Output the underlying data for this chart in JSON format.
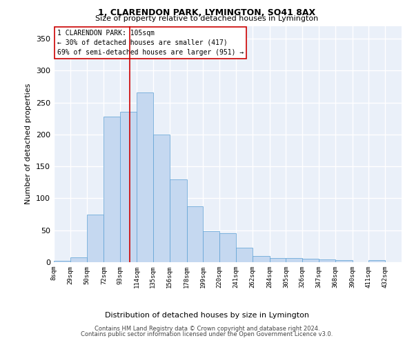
{
  "title": "1, CLARENDON PARK, LYMINGTON, SO41 8AX",
  "subtitle": "Size of property relative to detached houses in Lymington",
  "xlabel": "Distribution of detached houses by size in Lymington",
  "ylabel": "Number of detached properties",
  "bar_color": "#c5d8f0",
  "bar_edge_color": "#5a9fd4",
  "background_color": "#eaf0f9",
  "grid_color": "#ffffff",
  "vline_x": 105,
  "vline_color": "#cc0000",
  "annotation_line1": "1 CLARENDON PARK: 105sqm",
  "annotation_line2": "← 30% of detached houses are smaller (417)",
  "annotation_line3": "69% of semi-detached houses are larger (951) →",
  "annotation_box_color": "#ffffff",
  "annotation_box_edge": "#cc0000",
  "footer_line1": "Contains HM Land Registry data © Crown copyright and database right 2024.",
  "footer_line2": "Contains public sector information licensed under the Open Government Licence v3.0.",
  "bin_edges": [
    8,
    29,
    50,
    72,
    93,
    114,
    135,
    156,
    178,
    199,
    220,
    241,
    262,
    284,
    305,
    326,
    347,
    368,
    390,
    411,
    432,
    453
  ],
  "bar_heights": [
    2,
    8,
    75,
    228,
    236,
    266,
    200,
    130,
    87,
    49,
    45,
    23,
    10,
    7,
    6,
    5,
    4,
    3,
    0,
    3,
    0
  ],
  "bin_labels": [
    "8sqm",
    "29sqm",
    "50sqm",
    "72sqm",
    "93sqm",
    "114sqm",
    "135sqm",
    "156sqm",
    "178sqm",
    "199sqm",
    "220sqm",
    "241sqm",
    "262sqm",
    "284sqm",
    "305sqm",
    "326sqm",
    "347sqm",
    "368sqm",
    "390sqm",
    "411sqm",
    "432sqm"
  ],
  "yticks": [
    0,
    50,
    100,
    150,
    200,
    250,
    300,
    350
  ],
  "ylim": [
    0,
    370
  ],
  "title_fontsize": 9,
  "subtitle_fontsize": 8
}
